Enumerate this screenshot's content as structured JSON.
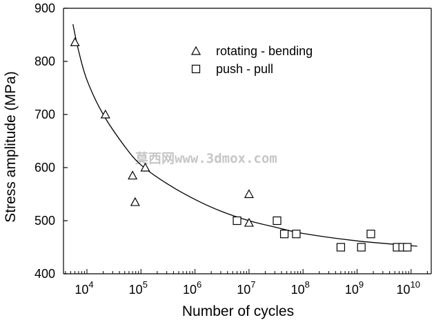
{
  "chart_data": {
    "type": "scatter",
    "xlabel": "Number of cycles",
    "ylabel": "Stress amplitude (MPa)",
    "x_scale": "log",
    "xlim": [
      2500,
      20000000000
    ],
    "ylim": [
      400,
      900
    ],
    "x_ticks": [
      10000,
      100000,
      1000000,
      10000000,
      100000000,
      1000000000,
      10000000000
    ],
    "x_tick_bases": [
      "10",
      "10",
      "10",
      "10",
      "10",
      "10",
      "10"
    ],
    "x_tick_exponents": [
      "4",
      "5",
      "6",
      "7",
      "8",
      "9",
      "10"
    ],
    "y_ticks": [
      400,
      500,
      600,
      700,
      800,
      900
    ],
    "y_tick_labels": [
      "400",
      "500",
      "600",
      "700",
      "800",
      "900"
    ],
    "grid": false,
    "legend_position": "top-center",
    "series": [
      {
        "name": "rotating - bending",
        "marker": "triangle",
        "points": [
          {
            "x": 6000,
            "y": 836
          },
          {
            "x": 22000,
            "y": 700
          },
          {
            "x": 70000,
            "y": 585
          },
          {
            "x": 78000,
            "y": 535
          },
          {
            "x": 120000,
            "y": 600
          },
          {
            "x": 10000000,
            "y": 550
          },
          {
            "x": 10000000,
            "y": 496
          }
        ]
      },
      {
        "name": "push - pull",
        "marker": "square",
        "points": [
          {
            "x": 6000000,
            "y": 500
          },
          {
            "x": 33000000,
            "y": 500
          },
          {
            "x": 45000000,
            "y": 475
          },
          {
            "x": 75000000,
            "y": 475
          },
          {
            "x": 500000000,
            "y": 450
          },
          {
            "x": 1200000000,
            "y": 450
          },
          {
            "x": 1800000000,
            "y": 475
          },
          {
            "x": 5500000000,
            "y": 450
          },
          {
            "x": 7000000000,
            "y": 450
          },
          {
            "x": 8500000000,
            "y": 450
          }
        ]
      }
    ],
    "fit_curve": [
      {
        "x": 5500,
        "y": 870
      },
      {
        "x": 7000,
        "y": 820
      },
      {
        "x": 10000,
        "y": 765
      },
      {
        "x": 20000,
        "y": 700
      },
      {
        "x": 50000,
        "y": 640
      },
      {
        "x": 100000,
        "y": 605
      },
      {
        "x": 300000,
        "y": 570
      },
      {
        "x": 1000000,
        "y": 540
      },
      {
        "x": 3000000,
        "y": 518
      },
      {
        "x": 10000000,
        "y": 500
      },
      {
        "x": 30000000,
        "y": 488
      },
      {
        "x": 100000000,
        "y": 476
      },
      {
        "x": 1000000000,
        "y": 462
      },
      {
        "x": 13000000000,
        "y": 452
      }
    ]
  },
  "watermark": "莫西网www.3dmox.com"
}
